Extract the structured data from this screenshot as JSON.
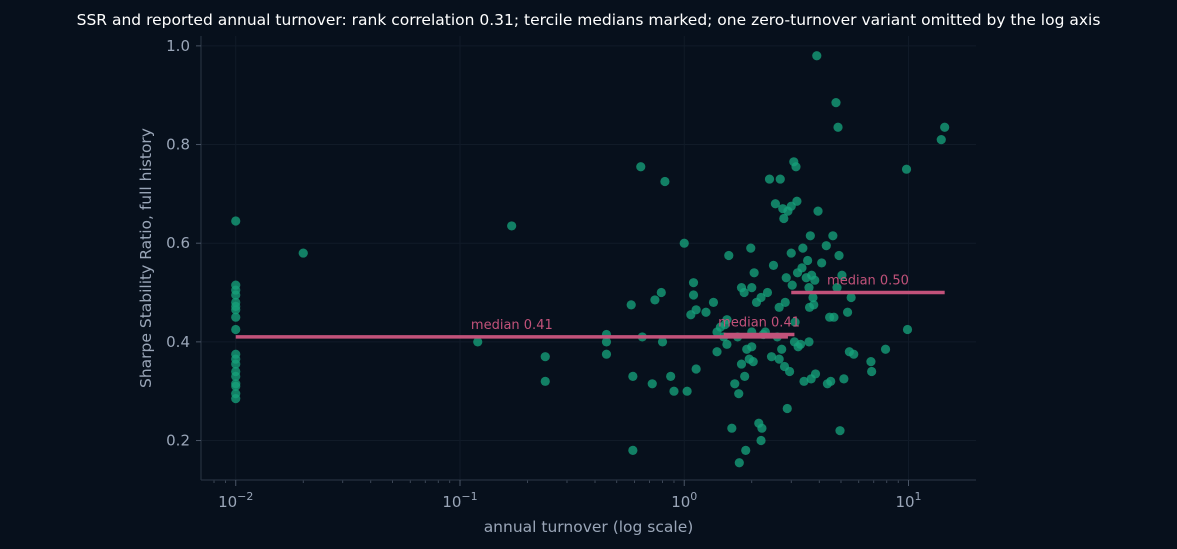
{
  "chart_data": {
    "type": "scatter",
    "title": "SSR and reported annual turnover: rank correlation 0.31; tercile medians marked; one zero-turnover variant omitted by the log axis",
    "xlabel": "annual turnover (log scale)",
    "ylabel": "Sharpe Stability Ratio, full history",
    "x_scale": "log",
    "xlim": [
      0.007,
      20
    ],
    "ylim": [
      0.12,
      1.02
    ],
    "grid": true,
    "colors": {
      "points": "#16a07a",
      "medians": "#c2527a",
      "background": "#07101c"
    },
    "x_ticks": [
      {
        "value": 0.01,
        "base": "10",
        "exp": "−2"
      },
      {
        "value": 0.1,
        "base": "10",
        "exp": "−1"
      },
      {
        "value": 1,
        "base": "10",
        "exp": "0"
      },
      {
        "value": 10,
        "base": "10",
        "exp": "1"
      }
    ],
    "y_ticks": [
      {
        "value": 0.2,
        "label": "0.2"
      },
      {
        "value": 0.4,
        "label": "0.4"
      },
      {
        "value": 0.6,
        "label": "0.6"
      },
      {
        "value": 0.8,
        "label": "0.8"
      },
      {
        "value": 1.0,
        "label": "1.0"
      }
    ],
    "medians": [
      {
        "label": "median 0.41",
        "value": 0.41,
        "x_start": 0.01,
        "x_end": 2.9
      },
      {
        "label": "median 0.41",
        "value": 0.415,
        "x_start": 1.5,
        "x_end": 3.1
      },
      {
        "label": "median 0.50",
        "value": 0.5,
        "x_start": 3.0,
        "x_end": 14.5
      }
    ],
    "points": [
      [
        0.01,
        0.645
      ],
      [
        0.01,
        0.515
      ],
      [
        0.01,
        0.505
      ],
      [
        0.01,
        0.495
      ],
      [
        0.01,
        0.48
      ],
      [
        0.01,
        0.472
      ],
      [
        0.01,
        0.465
      ],
      [
        0.01,
        0.45
      ],
      [
        0.01,
        0.425
      ],
      [
        0.01,
        0.375
      ],
      [
        0.01,
        0.365
      ],
      [
        0.01,
        0.355
      ],
      [
        0.01,
        0.34
      ],
      [
        0.01,
        0.33
      ],
      [
        0.01,
        0.315
      ],
      [
        0.01,
        0.31
      ],
      [
        0.01,
        0.295
      ],
      [
        0.01,
        0.285
      ],
      [
        0.02,
        0.58
      ],
      [
        0.12,
        0.4
      ],
      [
        0.17,
        0.635
      ],
      [
        0.24,
        0.37
      ],
      [
        0.24,
        0.32
      ],
      [
        0.45,
        0.415
      ],
      [
        0.45,
        0.4
      ],
      [
        0.45,
        0.375
      ],
      [
        0.58,
        0.475
      ],
      [
        0.59,
        0.33
      ],
      [
        0.59,
        0.18
      ],
      [
        0.64,
        0.755
      ],
      [
        0.65,
        0.41
      ],
      [
        0.72,
        0.315
      ],
      [
        0.74,
        0.485
      ],
      [
        0.79,
        0.5
      ],
      [
        0.8,
        0.4
      ],
      [
        0.82,
        0.725
      ],
      [
        0.87,
        0.33
      ],
      [
        0.9,
        0.3
      ],
      [
        1.0,
        0.6
      ],
      [
        1.03,
        0.3
      ],
      [
        1.07,
        0.455
      ],
      [
        1.1,
        0.52
      ],
      [
        1.1,
        0.495
      ],
      [
        1.13,
        0.465
      ],
      [
        1.13,
        0.345
      ],
      [
        1.25,
        0.46
      ],
      [
        1.35,
        0.48
      ],
      [
        1.4,
        0.42
      ],
      [
        1.4,
        0.38
      ],
      [
        1.45,
        0.43
      ],
      [
        1.5,
        0.41
      ],
      [
        1.52,
        0.435
      ],
      [
        1.55,
        0.445
      ],
      [
        1.55,
        0.395
      ],
      [
        1.58,
        0.575
      ],
      [
        1.63,
        0.225
      ],
      [
        1.68,
        0.315
      ],
      [
        1.73,
        0.41
      ],
      [
        1.75,
        0.295
      ],
      [
        1.76,
        0.155
      ],
      [
        1.8,
        0.51
      ],
      [
        1.8,
        0.355
      ],
      [
        1.85,
        0.5
      ],
      [
        1.86,
        0.33
      ],
      [
        1.9,
        0.385
      ],
      [
        1.88,
        0.18
      ],
      [
        1.95,
        0.365
      ],
      [
        1.98,
        0.59
      ],
      [
        2.0,
        0.51
      ],
      [
        2.0,
        0.42
      ],
      [
        2.0,
        0.39
      ],
      [
        2.03,
        0.36
      ],
      [
        2.05,
        0.54
      ],
      [
        2.1,
        0.48
      ],
      [
        2.15,
        0.235
      ],
      [
        2.2,
        0.49
      ],
      [
        2.25,
        0.415
      ],
      [
        2.2,
        0.2
      ],
      [
        2.22,
        0.225
      ],
      [
        2.3,
        0.42
      ],
      [
        2.35,
        0.5
      ],
      [
        2.4,
        0.73
      ],
      [
        2.45,
        0.37
      ],
      [
        2.5,
        0.555
      ],
      [
        2.55,
        0.68
      ],
      [
        2.6,
        0.41
      ],
      [
        2.65,
        0.365
      ],
      [
        2.65,
        0.47
      ],
      [
        2.68,
        0.73
      ],
      [
        2.72,
        0.385
      ],
      [
        2.75,
        0.67
      ],
      [
        2.78,
        0.65
      ],
      [
        2.8,
        0.35
      ],
      [
        2.82,
        0.48
      ],
      [
        2.85,
        0.53
      ],
      [
        2.88,
        0.265
      ],
      [
        2.9,
        0.665
      ],
      [
        2.95,
        0.34
      ],
      [
        3.0,
        0.58
      ],
      [
        3.0,
        0.675
      ],
      [
        3.03,
        0.515
      ],
      [
        3.08,
        0.765
      ],
      [
        3.1,
        0.4
      ],
      [
        3.12,
        0.44
      ],
      [
        3.15,
        0.755
      ],
      [
        3.18,
        0.685
      ],
      [
        3.2,
        0.54
      ],
      [
        3.22,
        0.39
      ],
      [
        3.3,
        0.395
      ],
      [
        3.35,
        0.55
      ],
      [
        3.38,
        0.59
      ],
      [
        3.42,
        0.32
      ],
      [
        3.5,
        0.53
      ],
      [
        3.55,
        0.565
      ],
      [
        3.6,
        0.51
      ],
      [
        3.6,
        0.4
      ],
      [
        3.62,
        0.47
      ],
      [
        3.65,
        0.615
      ],
      [
        3.68,
        0.325
      ],
      [
        3.7,
        0.535
      ],
      [
        3.75,
        0.49
      ],
      [
        3.78,
        0.475
      ],
      [
        3.82,
        0.525
      ],
      [
        3.85,
        0.335
      ],
      [
        3.9,
        0.98
      ],
      [
        3.95,
        0.665
      ],
      [
        4.1,
        0.56
      ],
      [
        4.3,
        0.595
      ],
      [
        4.35,
        0.315
      ],
      [
        4.45,
        0.45
      ],
      [
        4.5,
        0.32
      ],
      [
        4.6,
        0.615
      ],
      [
        4.65,
        0.45
      ],
      [
        4.75,
        0.885
      ],
      [
        4.8,
        0.51
      ],
      [
        4.85,
        0.835
      ],
      [
        4.9,
        0.575
      ],
      [
        4.95,
        0.22
      ],
      [
        5.05,
        0.535
      ],
      [
        5.15,
        0.325
      ],
      [
        5.35,
        0.46
      ],
      [
        5.45,
        0.38
      ],
      [
        5.55,
        0.49
      ],
      [
        5.7,
        0.375
      ],
      [
        6.8,
        0.36
      ],
      [
        6.85,
        0.34
      ],
      [
        7.9,
        0.385
      ],
      [
        9.8,
        0.75
      ],
      [
        9.9,
        0.425
      ],
      [
        14.0,
        0.81
      ],
      [
        14.5,
        0.835
      ]
    ]
  }
}
